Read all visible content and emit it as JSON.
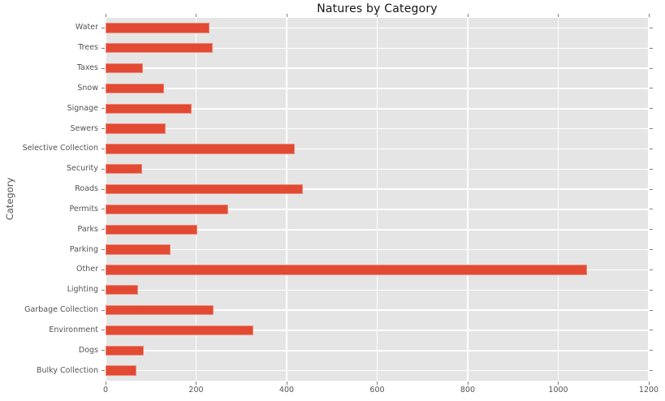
{
  "chart_data": {
    "type": "bar",
    "orientation": "horizontal",
    "title": "Natures by Category",
    "xlabel": "",
    "ylabel": "Category",
    "categories": [
      "Water",
      "Trees",
      "Taxes",
      "Snow",
      "Signage",
      "Sewers",
      "Selective Collection",
      "Security",
      "Roads",
      "Permits",
      "Parks",
      "Parking",
      "Other",
      "Lighting",
      "Garbage Collection",
      "Environment",
      "Dogs",
      "Bulky Collection"
    ],
    "values": [
      230,
      237,
      82,
      130,
      191,
      132,
      418,
      81,
      435,
      270,
      202,
      144,
      1063,
      72,
      238,
      326,
      85,
      69
    ],
    "xlim": [
      0,
      1200
    ],
    "xticks": [
      0,
      200,
      400,
      600,
      800,
      1000,
      1200
    ],
    "grid": true,
    "legend": "none",
    "colors": {
      "bar": "#E24A33",
      "plot_background": "#E5E5E5",
      "figure_background": "#FFFFFF",
      "gridline": "#FFFFFF",
      "tick_mark": "#7F7F7F",
      "tick_label": "#545454",
      "title_text": "#141414"
    }
  }
}
